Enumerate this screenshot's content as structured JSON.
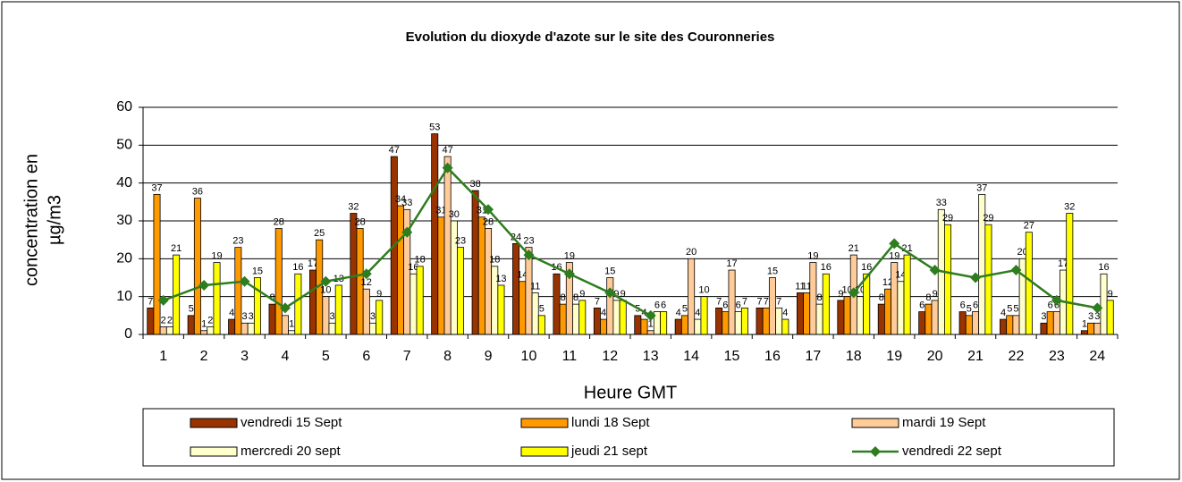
{
  "chart_data": {
    "type": "bar",
    "title": "Evolution du dioxyde d'azote sur le site des Couronneries",
    "y_label": [
      "concentration en",
      "µg/m3"
    ],
    "x_label": "Heure GMT",
    "categories": [
      "1",
      "2",
      "3",
      "4",
      "5",
      "6",
      "7",
      "8",
      "9",
      "10",
      "11",
      "12",
      "13",
      "14",
      "15",
      "16",
      "17",
      "18",
      "19",
      "20",
      "21",
      "22",
      "23",
      "24"
    ],
    "ylim": [
      0,
      60
    ],
    "yticks": [
      0,
      10,
      20,
      30,
      40,
      50,
      60
    ],
    "grid": true,
    "series": [
      {
        "name": "vendredi 15 Sept",
        "color": "#993300",
        "type": "bar",
        "values": [
          7,
          5,
          4,
          8,
          17,
          32,
          47,
          53,
          38,
          24,
          16,
          7,
          5,
          4,
          7,
          7,
          11,
          9,
          8,
          6,
          6,
          4,
          3,
          1
        ]
      },
      {
        "name": "lundi 18 Sept",
        "color": "#FF9900",
        "type": "bar",
        "values": [
          37,
          36,
          23,
          28,
          25,
          28,
          34,
          31,
          31,
          14,
          8,
          4,
          4,
          5,
          6,
          7,
          11,
          10,
          12,
          8,
          5,
          5,
          6,
          3
        ]
      },
      {
        "name": "mardi 19 Sept",
        "color": "#FFCC99",
        "type": "bar",
        "values": [
          2,
          1,
          3,
          5,
          10,
          12,
          33,
          47,
          28,
          23,
          19,
          15,
          1,
          20,
          17,
          15,
          19,
          21,
          19,
          9,
          6,
          5,
          6,
          3
        ]
      },
      {
        "name": "mercredi 20 sept",
        "color": "#FFFFCC",
        "type": "bar",
        "values": [
          2,
          2,
          3,
          1,
          3,
          3,
          16,
          30,
          18,
          11,
          8,
          9,
          6,
          4,
          6,
          7,
          8,
          10,
          14,
          33,
          37,
          20,
          17,
          16
        ]
      },
      {
        "name": "jeudi 21 sept",
        "color": "#FFFF00",
        "type": "bar",
        "values": [
          21,
          19,
          15,
          16,
          13,
          9,
          18,
          23,
          13,
          5,
          9,
          9,
          6,
          10,
          7,
          4,
          16,
          16,
          21,
          29,
          29,
          27,
          32,
          9
        ]
      },
      {
        "name": "vendredi 22 sept",
        "color": "#2E7D1E",
        "type": "line",
        "values": [
          9,
          13,
          14,
          7,
          14,
          16,
          27,
          44,
          33,
          21,
          16,
          11,
          5,
          null,
          null,
          null,
          null,
          11,
          24,
          17,
          15,
          17,
          9,
          7
        ]
      }
    ]
  }
}
